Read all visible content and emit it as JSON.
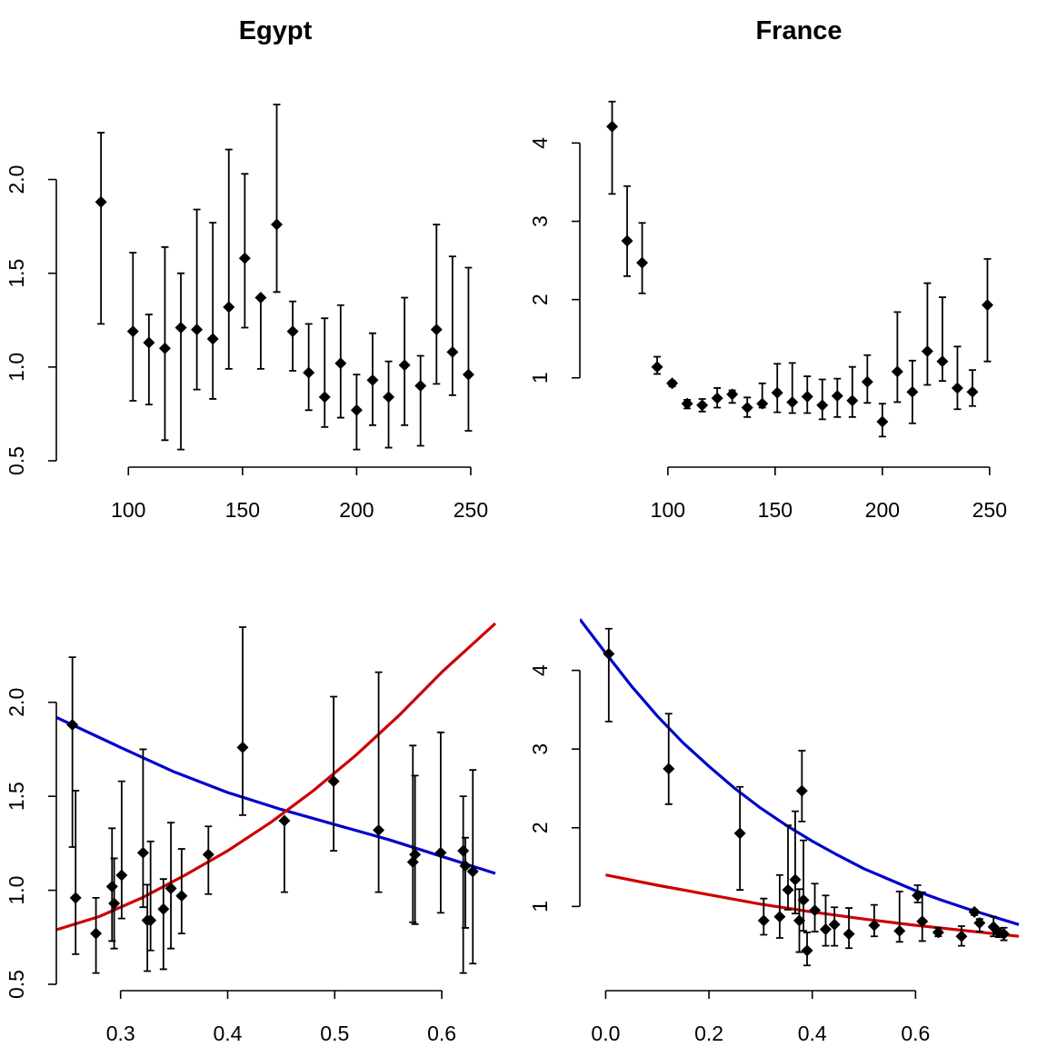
{
  "colors": {
    "blue": "#0000CD",
    "red": "#CD0000",
    "points": "#000000"
  },
  "chart_data": [
    {
      "id": "egypt-top",
      "type": "scatter",
      "title": "Egypt",
      "xlim": [
        76,
        254
      ],
      "ylim": [
        0.5,
        2.4
      ],
      "xticks": [
        100,
        150,
        200,
        250
      ],
      "yticks": [
        0.5,
        1.0,
        1.5,
        2.0
      ],
      "ytick_labels": [
        "0.5",
        "1.0",
        "1.5",
        "2.0"
      ],
      "grid": false,
      "points": [
        {
          "x": 88,
          "y": 1.88,
          "lo": 1.23,
          "hi": 2.25
        },
        {
          "x": 102,
          "y": 1.19,
          "lo": 0.82,
          "hi": 1.61
        },
        {
          "x": 109,
          "y": 1.13,
          "lo": 0.8,
          "hi": 1.28
        },
        {
          "x": 116,
          "y": 1.1,
          "lo": 0.61,
          "hi": 1.64
        },
        {
          "x": 123,
          "y": 1.21,
          "lo": 0.56,
          "hi": 1.5
        },
        {
          "x": 130,
          "y": 1.2,
          "lo": 0.88,
          "hi": 1.84
        },
        {
          "x": 137,
          "y": 1.15,
          "lo": 0.83,
          "hi": 1.77
        },
        {
          "x": 144,
          "y": 1.32,
          "lo": 0.99,
          "hi": 2.16
        },
        {
          "x": 151,
          "y": 1.58,
          "lo": 1.21,
          "hi": 2.03
        },
        {
          "x": 158,
          "y": 1.37,
          "lo": 0.99,
          "hi": 1.37
        },
        {
          "x": 165,
          "y": 1.76,
          "lo": 1.4,
          "hi": 2.4
        },
        {
          "x": 172,
          "y": 1.19,
          "lo": 0.98,
          "hi": 1.35
        },
        {
          "x": 179,
          "y": 0.97,
          "lo": 0.77,
          "hi": 1.23
        },
        {
          "x": 186,
          "y": 0.84,
          "lo": 0.68,
          "hi": 1.26
        },
        {
          "x": 193,
          "y": 1.02,
          "lo": 0.73,
          "hi": 1.33
        },
        {
          "x": 200,
          "y": 0.77,
          "lo": 0.56,
          "hi": 0.96
        },
        {
          "x": 207,
          "y": 0.93,
          "lo": 0.69,
          "hi": 1.18
        },
        {
          "x": 214,
          "y": 0.84,
          "lo": 0.57,
          "hi": 1.03
        },
        {
          "x": 221,
          "y": 1.01,
          "lo": 0.69,
          "hi": 1.37
        },
        {
          "x": 228,
          "y": 0.9,
          "lo": 0.58,
          "hi": 1.06
        },
        {
          "x": 235,
          "y": 1.2,
          "lo": 0.91,
          "hi": 1.76
        },
        {
          "x": 242,
          "y": 1.08,
          "lo": 0.85,
          "hi": 1.59
        },
        {
          "x": 249,
          "y": 0.96,
          "lo": 0.66,
          "hi": 1.53
        }
      ]
    },
    {
      "id": "france-top",
      "type": "scatter",
      "title": "France",
      "xlim": [
        67,
        256
      ],
      "ylim": [
        0.08,
        4.55
      ],
      "xticks": [
        100,
        150,
        200,
        250
      ],
      "yticks": [
        1,
        2,
        3,
        4
      ],
      "ytick_labels": [
        "1",
        "2",
        "3",
        "4"
      ],
      "grid": false,
      "points": [
        {
          "x": 74,
          "y": 4.21,
          "lo": 3.35,
          "hi": 4.53
        },
        {
          "x": 81,
          "y": 2.75,
          "lo": 2.3,
          "hi": 3.45
        },
        {
          "x": 88,
          "y": 2.47,
          "lo": 2.08,
          "hi": 2.98
        },
        {
          "x": 95,
          "y": 1.14,
          "lo": 1.05,
          "hi": 1.27
        },
        {
          "x": 102,
          "y": 0.93,
          "lo": 0.89,
          "hi": 0.96
        },
        {
          "x": 109,
          "y": 0.67,
          "lo": 0.61,
          "hi": 0.72
        },
        {
          "x": 116,
          "y": 0.65,
          "lo": 0.57,
          "hi": 0.73
        },
        {
          "x": 123,
          "y": 0.74,
          "lo": 0.62,
          "hi": 0.87
        },
        {
          "x": 130,
          "y": 0.79,
          "lo": 0.68,
          "hi": 0.84
        },
        {
          "x": 137,
          "y": 0.62,
          "lo": 0.5,
          "hi": 0.75
        },
        {
          "x": 144,
          "y": 0.67,
          "lo": 0.62,
          "hi": 0.93
        },
        {
          "x": 151,
          "y": 0.81,
          "lo": 0.56,
          "hi": 1.18
        },
        {
          "x": 158,
          "y": 0.69,
          "lo": 0.55,
          "hi": 1.19
        },
        {
          "x": 165,
          "y": 0.76,
          "lo": 0.55,
          "hi": 1.02
        },
        {
          "x": 172,
          "y": 0.65,
          "lo": 0.47,
          "hi": 0.98
        },
        {
          "x": 179,
          "y": 0.77,
          "lo": 0.5,
          "hi": 0.99
        },
        {
          "x": 186,
          "y": 0.71,
          "lo": 0.5,
          "hi": 1.14
        },
        {
          "x": 193,
          "y": 0.95,
          "lo": 0.68,
          "hi": 1.29
        },
        {
          "x": 200,
          "y": 0.44,
          "lo": 0.25,
          "hi": 0.67
        },
        {
          "x": 207,
          "y": 1.08,
          "lo": 0.69,
          "hi": 1.84
        },
        {
          "x": 214,
          "y": 0.82,
          "lo": 0.42,
          "hi": 1.22
        },
        {
          "x": 221,
          "y": 1.34,
          "lo": 0.91,
          "hi": 2.21
        },
        {
          "x": 228,
          "y": 1.21,
          "lo": 0.96,
          "hi": 2.03
        },
        {
          "x": 235,
          "y": 0.87,
          "lo": 0.6,
          "hi": 1.4
        },
        {
          "x": 242,
          "y": 0.82,
          "lo": 0.64,
          "hi": 1.1
        },
        {
          "x": 249,
          "y": 1.93,
          "lo": 1.21,
          "hi": 2.52
        }
      ]
    },
    {
      "id": "egypt-bottom",
      "type": "scatter",
      "title": "",
      "xlim": [
        0.24,
        0.65
      ],
      "ylim": [
        0.5,
        2.4
      ],
      "xticks": [
        0.3,
        0.4,
        0.5,
        0.6
      ],
      "xtick_labels": [
        "0.3",
        "0.4",
        "0.5",
        "0.6"
      ],
      "yticks": [
        0.5,
        1.0,
        1.5,
        2.0
      ],
      "ytick_labels": [
        "0.5",
        "1.0",
        "1.5",
        "2.0"
      ],
      "grid": false,
      "curves": [
        {
          "color": "blue",
          "x": [
            0.24,
            0.3,
            0.35,
            0.4,
            0.45,
            0.5,
            0.55,
            0.6,
            0.65
          ],
          "y": [
            1.92,
            1.76,
            1.63,
            1.52,
            1.43,
            1.35,
            1.27,
            1.18,
            1.09
          ]
        },
        {
          "color": "red",
          "x": [
            0.24,
            0.28,
            0.32,
            0.36,
            0.4,
            0.44,
            0.48,
            0.52,
            0.56,
            0.6,
            0.65
          ],
          "y": [
            0.79,
            0.86,
            0.96,
            1.08,
            1.21,
            1.36,
            1.53,
            1.72,
            1.93,
            2.16,
            2.42
          ]
        }
      ],
      "points": [
        {
          "x": 0.255,
          "y": 1.88,
          "lo": 1.23,
          "hi": 2.24
        },
        {
          "x": 0.258,
          "y": 0.96,
          "lo": 0.66,
          "hi": 1.53
        },
        {
          "x": 0.277,
          "y": 0.77,
          "lo": 0.56,
          "hi": 0.96
        },
        {
          "x": 0.292,
          "y": 1.02,
          "lo": 0.73,
          "hi": 1.33
        },
        {
          "x": 0.294,
          "y": 0.93,
          "lo": 0.69,
          "hi": 1.17
        },
        {
          "x": 0.301,
          "y": 1.08,
          "lo": 0.85,
          "hi": 1.58
        },
        {
          "x": 0.321,
          "y": 1.2,
          "lo": 0.91,
          "hi": 1.75
        },
        {
          "x": 0.325,
          "y": 0.84,
          "lo": 0.57,
          "hi": 1.03
        },
        {
          "x": 0.328,
          "y": 0.84,
          "lo": 0.68,
          "hi": 1.26
        },
        {
          "x": 0.34,
          "y": 0.9,
          "lo": 0.58,
          "hi": 1.06
        },
        {
          "x": 0.347,
          "y": 1.01,
          "lo": 0.69,
          "hi": 1.36
        },
        {
          "x": 0.357,
          "y": 0.97,
          "lo": 0.77,
          "hi": 1.22
        },
        {
          "x": 0.382,
          "y": 1.19,
          "lo": 0.98,
          "hi": 1.34
        },
        {
          "x": 0.414,
          "y": 1.76,
          "lo": 1.4,
          "hi": 2.4
        },
        {
          "x": 0.453,
          "y": 1.37,
          "lo": 0.99,
          "hi": 1.37
        },
        {
          "x": 0.499,
          "y": 1.58,
          "lo": 1.21,
          "hi": 2.03
        },
        {
          "x": 0.541,
          "y": 1.32,
          "lo": 0.99,
          "hi": 2.16
        },
        {
          "x": 0.573,
          "y": 1.15,
          "lo": 0.83,
          "hi": 1.77
        },
        {
          "x": 0.575,
          "y": 1.19,
          "lo": 0.82,
          "hi": 1.61
        },
        {
          "x": 0.599,
          "y": 1.2,
          "lo": 0.88,
          "hi": 1.84
        },
        {
          "x": 0.62,
          "y": 1.21,
          "lo": 0.56,
          "hi": 1.5
        },
        {
          "x": 0.622,
          "y": 1.13,
          "lo": 0.8,
          "hi": 1.28
        },
        {
          "x": 0.629,
          "y": 1.1,
          "lo": 0.61,
          "hi": 1.64
        }
      ]
    },
    {
      "id": "france-bottom",
      "type": "scatter",
      "title": "",
      "xlim": [
        -0.05,
        0.8
      ],
      "ylim": [
        0.08,
        4.55
      ],
      "xticks": [
        0.0,
        0.2,
        0.4,
        0.6
      ],
      "xtick_labels": [
        "0.0",
        "0.2",
        "0.4",
        "0.6"
      ],
      "yticks": [
        1,
        2,
        3,
        4
      ],
      "ytick_labels": [
        "1",
        "2",
        "3",
        "4"
      ],
      "grid": false,
      "curves": [
        {
          "color": "blue",
          "x": [
            -0.05,
            0.0,
            0.05,
            0.1,
            0.15,
            0.2,
            0.25,
            0.3,
            0.35,
            0.4,
            0.45,
            0.5,
            0.55,
            0.6,
            0.65,
            0.7,
            0.75,
            0.8
          ],
          "y": [
            4.65,
            4.22,
            3.8,
            3.42,
            3.08,
            2.78,
            2.5,
            2.25,
            2.03,
            1.83,
            1.65,
            1.48,
            1.34,
            1.2,
            1.08,
            0.97,
            0.87,
            0.77
          ]
        },
        {
          "color": "red",
          "x": [
            0.0,
            0.1,
            0.2,
            0.3,
            0.4,
            0.5,
            0.6,
            0.7,
            0.8
          ],
          "y": [
            1.4,
            1.27,
            1.15,
            1.03,
            0.93,
            0.84,
            0.76,
            0.69,
            0.62
          ]
        }
      ],
      "points": [
        {
          "x": 0.006,
          "y": 4.21,
          "lo": 3.35,
          "hi": 4.53
        },
        {
          "x": 0.122,
          "y": 2.75,
          "lo": 2.3,
          "hi": 3.45
        },
        {
          "x": 0.26,
          "y": 1.93,
          "lo": 1.21,
          "hi": 2.52
        },
        {
          "x": 0.306,
          "y": 0.82,
          "lo": 0.64,
          "hi": 1.1
        },
        {
          "x": 0.337,
          "y": 0.87,
          "lo": 0.6,
          "hi": 1.4
        },
        {
          "x": 0.353,
          "y": 1.21,
          "lo": 0.96,
          "hi": 2.03
        },
        {
          "x": 0.367,
          "y": 1.34,
          "lo": 0.91,
          "hi": 2.21
        },
        {
          "x": 0.375,
          "y": 0.82,
          "lo": 0.42,
          "hi": 1.22
        },
        {
          "x": 0.38,
          "y": 2.47,
          "lo": 2.08,
          "hi": 2.98
        },
        {
          "x": 0.383,
          "y": 1.08,
          "lo": 0.69,
          "hi": 1.84
        },
        {
          "x": 0.39,
          "y": 0.44,
          "lo": 0.25,
          "hi": 0.67
        },
        {
          "x": 0.405,
          "y": 0.95,
          "lo": 0.68,
          "hi": 1.29
        },
        {
          "x": 0.426,
          "y": 0.71,
          "lo": 0.5,
          "hi": 1.14
        },
        {
          "x": 0.443,
          "y": 0.77,
          "lo": 0.5,
          "hi": 0.99
        },
        {
          "x": 0.471,
          "y": 0.65,
          "lo": 0.47,
          "hi": 0.98
        },
        {
          "x": 0.52,
          "y": 0.76,
          "lo": 0.62,
          "hi": 1.02
        },
        {
          "x": 0.569,
          "y": 0.69,
          "lo": 0.55,
          "hi": 1.19
        },
        {
          "x": 0.604,
          "y": 1.14,
          "lo": 1.05,
          "hi": 1.27
        },
        {
          "x": 0.613,
          "y": 0.81,
          "lo": 0.56,
          "hi": 1.18
        },
        {
          "x": 0.644,
          "y": 0.67,
          "lo": 0.62,
          "hi": 0.73
        },
        {
          "x": 0.689,
          "y": 0.62,
          "lo": 0.5,
          "hi": 0.75
        },
        {
          "x": 0.714,
          "y": 0.93,
          "lo": 0.89,
          "hi": 0.96
        },
        {
          "x": 0.724,
          "y": 0.79,
          "lo": 0.68,
          "hi": 0.84
        },
        {
          "x": 0.751,
          "y": 0.74,
          "lo": 0.62,
          "hi": 0.87
        },
        {
          "x": 0.761,
          "y": 0.67,
          "lo": 0.61,
          "hi": 0.72
        },
        {
          "x": 0.771,
          "y": 0.65,
          "lo": 0.57,
          "hi": 0.73
        }
      ]
    }
  ]
}
